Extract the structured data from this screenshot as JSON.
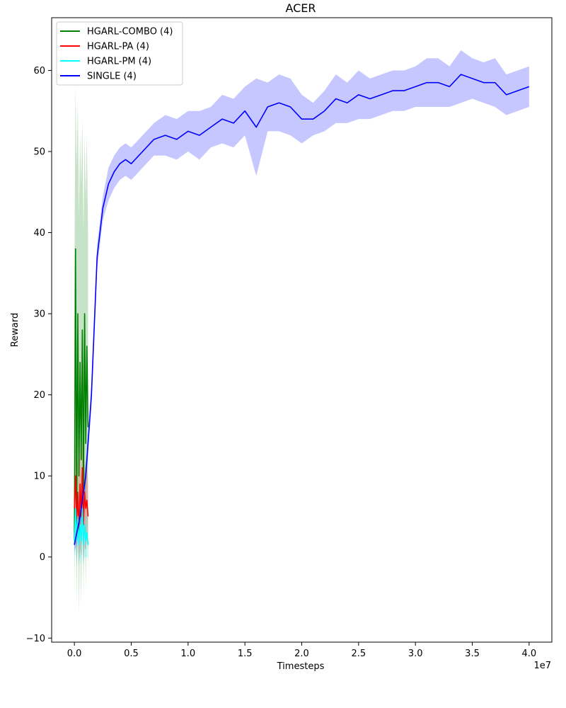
{
  "chart_data": {
    "type": "line",
    "title": "ACER",
    "xlabel": "Timesteps",
    "ylabel": "Reward",
    "x_offset_text": "1e7",
    "xlim": [
      -0.2,
      4.2
    ],
    "ylim": [
      -10.5,
      66.5
    ],
    "x_ticks": [
      0.0,
      0.5,
      1.0,
      1.5,
      2.0,
      2.5,
      3.0,
      3.5,
      4.0
    ],
    "x_tick_labels": [
      "0.0",
      "0.5",
      "1.0",
      "1.5",
      "2.0",
      "2.5",
      "3.0",
      "3.5",
      "4.0"
    ],
    "y_ticks": [
      -10,
      0,
      10,
      20,
      30,
      40,
      50,
      60
    ],
    "y_tick_labels": [
      "−10",
      "0",
      "10",
      "20",
      "30",
      "40",
      "50",
      "60"
    ],
    "grid": false,
    "legend_position": "top-left",
    "series": [
      {
        "name": "HGARL-COMBO (4)",
        "color": "#008000",
        "x": [
          0.0,
          0.01,
          0.02,
          0.03,
          0.04,
          0.05,
          0.06,
          0.07,
          0.08,
          0.09,
          0.1,
          0.11,
          0.12
        ],
        "y": [
          2,
          38,
          6,
          30,
          10,
          24,
          12,
          28,
          8,
          30,
          14,
          26,
          16
        ],
        "lower": [
          -5,
          12,
          -6,
          8,
          -7,
          4,
          -6,
          10,
          -5,
          8,
          -4,
          6,
          -2
        ],
        "upper": [
          34,
          58,
          48,
          56,
          42,
          52,
          46,
          54,
          40,
          52,
          44,
          52,
          40
        ]
      },
      {
        "name": "HGARL-PA (4)",
        "color": "#ff0000",
        "x": [
          0.0,
          0.01,
          0.02,
          0.03,
          0.04,
          0.05,
          0.06,
          0.07,
          0.08,
          0.09,
          0.1,
          0.11,
          0.12
        ],
        "y": [
          6,
          10,
          4,
          8,
          3,
          9,
          5,
          11,
          4,
          8,
          6,
          7,
          5
        ],
        "lower": [
          1,
          3,
          -1,
          2,
          -1,
          1,
          0,
          3,
          -1,
          1,
          1,
          2,
          1
        ],
        "upper": [
          12,
          14,
          10,
          12,
          9,
          14,
          10,
          15,
          9,
          12,
          10,
          11,
          9
        ]
      },
      {
        "name": "HGARL-PM (4)",
        "color": "#00ffff",
        "x": [
          0.0,
          0.01,
          0.02,
          0.03,
          0.04,
          0.05,
          0.06,
          0.07,
          0.08,
          0.09,
          0.1,
          0.11,
          0.12
        ],
        "y": [
          1.5,
          6,
          2,
          5,
          1.5,
          4,
          2,
          6,
          1.5,
          4,
          2,
          3,
          1.5
        ],
        "lower": [
          -1,
          1,
          -1,
          1,
          -1,
          0,
          -1,
          1,
          -1,
          0,
          0,
          0,
          0
        ],
        "upper": [
          4,
          8,
          5,
          7,
          4,
          6,
          5,
          8,
          4,
          6,
          5,
          5,
          4
        ]
      },
      {
        "name": "SINGLE (4)",
        "color": "#0000ff",
        "x": [
          0.0,
          0.05,
          0.1,
          0.15,
          0.2,
          0.25,
          0.3,
          0.35,
          0.4,
          0.45,
          0.5,
          0.6,
          0.7,
          0.8,
          0.9,
          1.0,
          1.1,
          1.2,
          1.3,
          1.4,
          1.5,
          1.6,
          1.7,
          1.8,
          1.9,
          2.0,
          2.1,
          2.2,
          2.3,
          2.4,
          2.5,
          2.6,
          2.7,
          2.8,
          2.9,
          3.0,
          3.1,
          3.2,
          3.3,
          3.4,
          3.5,
          3.6,
          3.7,
          3.8,
          3.9,
          4.0
        ],
        "y": [
          1.5,
          5,
          10,
          20,
          37,
          43,
          46,
          47.5,
          48.5,
          49,
          48.5,
          50,
          51.5,
          52,
          51.5,
          52.5,
          52,
          53,
          54,
          53.5,
          55,
          53,
          55.5,
          56,
          55.5,
          54,
          54,
          55,
          56.5,
          56,
          57,
          56.5,
          57,
          57.5,
          57.5,
          58,
          58.5,
          58.5,
          58,
          59.5,
          59,
          58.5,
          58.5,
          57,
          57.5,
          58
        ],
        "lower": [
          0.5,
          3.5,
          8.5,
          18.5,
          35.5,
          41.5,
          44,
          45.5,
          46.5,
          47,
          46.5,
          48,
          49.5,
          49.5,
          49,
          50,
          49,
          50.5,
          51,
          50.5,
          52,
          47,
          52.5,
          52.5,
          52,
          51,
          52,
          52.5,
          53.5,
          53.5,
          54,
          54,
          54.5,
          55,
          55,
          55.5,
          55.5,
          55.5,
          55.5,
          56,
          56.5,
          56,
          55.5,
          54.5,
          55,
          55.5
        ],
        "upper": [
          2.5,
          6.5,
          11.5,
          21.5,
          38.5,
          44.5,
          48,
          49.5,
          50.5,
          51,
          50.5,
          52,
          53.5,
          54.5,
          54,
          55,
          55,
          55.5,
          57,
          56.5,
          58,
          59,
          58.5,
          59.5,
          59,
          57,
          56,
          57.5,
          59.5,
          58.5,
          60,
          59,
          59.5,
          60,
          60,
          60.5,
          61.5,
          61.5,
          60.5,
          62.5,
          61.5,
          61,
          61.5,
          59.5,
          60,
          60.5
        ]
      }
    ]
  }
}
